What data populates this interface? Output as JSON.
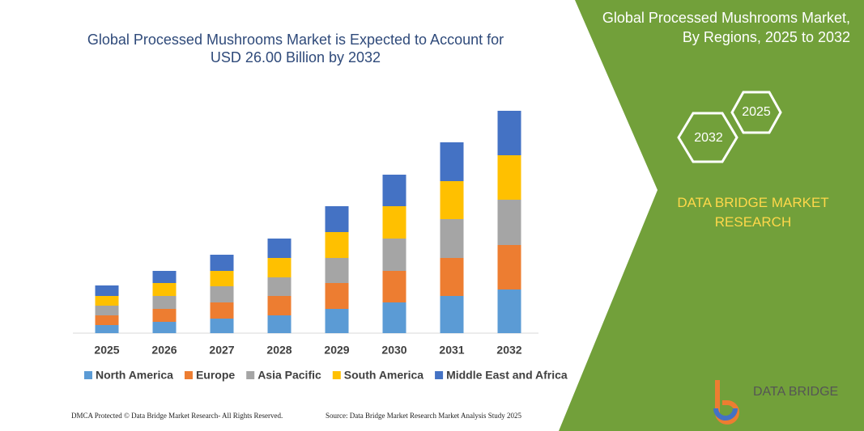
{
  "chart_data": {
    "type": "stacked-bar",
    "title": "Global Processed Mushrooms Market is Expected to Account for USD 26.00 Billion by 2032",
    "categories": [
      "2025",
      "2026",
      "2027",
      "2028",
      "2029",
      "2030",
      "2031",
      "2032"
    ],
    "series": [
      {
        "name": "North America",
        "color": "#5b9bd5",
        "values": [
          10,
          14,
          18,
          22,
          30,
          38,
          46,
          54
        ]
      },
      {
        "name": "Europe",
        "color": "#ed7d31",
        "values": [
          12,
          16,
          20,
          24,
          32,
          39,
          47,
          55
        ]
      },
      {
        "name": "Asia Pacific",
        "color": "#a5a5a5",
        "values": [
          12,
          16,
          20,
          23,
          31,
          40,
          48,
          56
        ]
      },
      {
        "name": "South America",
        "color": "#ffc000",
        "values": [
          12,
          16,
          19,
          24,
          32,
          40,
          47,
          55
        ]
      },
      {
        "name": "Middle East and Africa",
        "color": "#4472c4",
        "values": [
          13,
          15,
          20,
          24,
          32,
          39,
          48,
          55
        ]
      }
    ],
    "ylim": [
      0,
      280
    ]
  },
  "panel": {
    "title": "Global Processed Mushrooms Market, By Regions, 2025 to 2032",
    "hex_small": "2025",
    "hex_large": "2032",
    "brand": "DATA BRIDGE MARKET RESEARCH",
    "logo": "DATA BRIDGE"
  },
  "footer": {
    "left": "DMCA Protected © Data Bridge Market Research- All Rights Reserved.",
    "right": "Source: Data Bridge Market Research Market Analysis Study 2025"
  }
}
